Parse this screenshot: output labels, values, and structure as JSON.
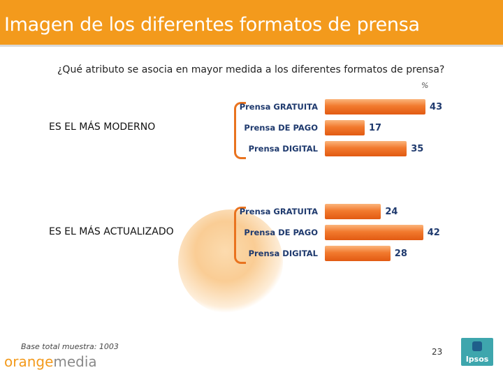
{
  "header": {
    "title": "Imagen de los diferentes formatos de prensa"
  },
  "question": "¿Qué atributo se asocia en mayor medida a los diferentes formatos de prensa?",
  "unit": "%",
  "chart_data": {
    "type": "bar",
    "orientation": "horizontal",
    "title": "¿Qué atributo se asocia en mayor medida a los diferentes formatos de prensa?",
    "unit": "%",
    "groups": [
      {
        "name": "ES EL MÁS MODERNO",
        "categories": [
          "Prensa GRATUITA",
          "Prensa DE PAGO",
          "Prensa DIGITAL"
        ],
        "values": [
          43,
          17,
          35
        ]
      },
      {
        "name": "ES EL MÁS ACTUALIZADO",
        "categories": [
          "Prensa GRATUITA",
          "Prensa DE PAGO",
          "Prensa DIGITAL"
        ],
        "values": [
          24,
          42,
          28
        ]
      }
    ],
    "xlim": [
      0,
      45
    ]
  },
  "footer": {
    "base_note": "Base total muestra: 1003",
    "logo_orange": "orange",
    "logo_media": "media",
    "page_number": "23",
    "ipsos_logo": "Ipsos"
  },
  "colors": {
    "header": "#f39a1c",
    "bar": "#f27a2e",
    "label": "#1f3a6e"
  }
}
